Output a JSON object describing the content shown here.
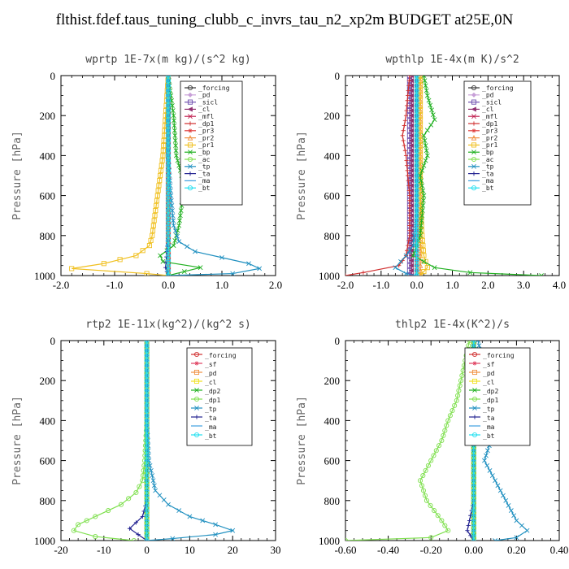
{
  "page_title": "flthist.fdef.taus_tuning_clubb_c_invrs_tau_n2_xp2m  BUDGET at25E,0N",
  "chart_data": [
    {
      "type": "line",
      "title": "wprtp  1E-7x(m kg)/(s^2 kg)",
      "ylabel": "Pressure [hPa]",
      "xlim": [
        -2.0,
        2.0
      ],
      "ylim": [
        1000,
        0
      ],
      "xticks": [
        "-2.0",
        "-1.0",
        "0.0",
        "1.0",
        "2.0"
      ],
      "yticks": [
        "0",
        "200",
        "400",
        "600",
        "800",
        "1000"
      ],
      "legend_position": "top-right",
      "series": [
        {
          "name": "_forcing",
          "color": "#333333",
          "marker": "o",
          "x": [
            0.0,
            0.0
          ],
          "y": [
            0,
            1000
          ]
        },
        {
          "name": "_pd",
          "color": "#c8a0d8",
          "marker": "d",
          "x": [
            0.0,
            0.0
          ],
          "y": [
            0,
            1000
          ]
        },
        {
          "name": "_sicl",
          "color": "#7050b0",
          "marker": "s",
          "x": [
            0.0,
            0.0
          ],
          "y": [
            0,
            1000
          ]
        },
        {
          "name": "_cl",
          "color": "#903070",
          "marker": "<",
          "x": [
            0.0,
            0.0
          ],
          "y": [
            0,
            1000
          ]
        },
        {
          "name": "_mfl",
          "color": "#c02050",
          "marker": "x",
          "x": [
            0.0,
            0.0
          ],
          "y": [
            0,
            1000
          ]
        },
        {
          "name": "_dp1",
          "color": "#d03030",
          "marker": "+",
          "x": [
            0.0,
            0.0
          ],
          "y": [
            0,
            1000
          ]
        },
        {
          "name": "_pr3",
          "color": "#e04040",
          "marker": "*",
          "x": [
            0.0,
            0.0
          ],
          "y": [
            0,
            1000
          ]
        },
        {
          "name": "_pr2",
          "color": "#f09040",
          "marker": "^",
          "x": [
            0.0,
            0.0
          ],
          "y": [
            0,
            1000
          ]
        },
        {
          "name": "_pr1",
          "color": "#f0c020",
          "marker": "s",
          "x": [
            0.0,
            -0.05,
            -0.1,
            -0.15,
            -0.2,
            -0.25,
            -0.3,
            -0.35,
            -0.6,
            -1.2,
            -1.8,
            -0.4,
            0.0
          ],
          "y": [
            0,
            200,
            400,
            500,
            600,
            700,
            800,
            850,
            900,
            940,
            965,
            990,
            1000
          ]
        },
        {
          "name": "_bp",
          "color": "#20b020",
          "marker": "x",
          "x": [
            0.0,
            0.1,
            0.15,
            0.25,
            0.3,
            0.25,
            0.2,
            0.1,
            -0.15,
            -0.1,
            0.6,
            0.0
          ],
          "y": [
            0,
            200,
            400,
            500,
            550,
            650,
            750,
            850,
            900,
            930,
            960,
            1000
          ]
        },
        {
          "name": "_ac",
          "color": "#80e050",
          "marker": "o",
          "x": [
            0.0,
            0.0
          ],
          "y": [
            0,
            1000
          ]
        },
        {
          "name": "_tp",
          "color": "#2090c0",
          "marker": "x",
          "x": [
            0.0,
            0.0,
            0.05,
            0.1,
            0.2,
            0.5,
            1.0,
            1.5,
            1.7,
            1.2,
            0.0
          ],
          "y": [
            0,
            400,
            600,
            750,
            830,
            880,
            910,
            940,
            965,
            990,
            1000
          ]
        },
        {
          "name": "_ta",
          "color": "#202090",
          "marker": "+",
          "x": [
            0.0,
            0.0,
            -0.05,
            0.0
          ],
          "y": [
            0,
            800,
            960,
            1000
          ]
        },
        {
          "name": "_ma",
          "color": "#40a0e0",
          "marker": "-",
          "x": [
            0.0,
            0.0
          ],
          "y": [
            0,
            1000
          ]
        },
        {
          "name": "_bt",
          "color": "#20e0f0",
          "marker": "o",
          "x": [
            0.0,
            0.0
          ],
          "y": [
            0,
            1000
          ]
        }
      ]
    },
    {
      "type": "line",
      "title": "wpthlp  1E-4x(m K)/s^2",
      "ylabel": "Pressure [hPa]",
      "xlim": [
        -2.0,
        4.0
      ],
      "ylim": [
        1000,
        0
      ],
      "xticks": [
        "-2.0",
        "-1.0",
        "0.0",
        "1.0",
        "2.0",
        "3.0",
        "4.0"
      ],
      "yticks": [
        "0",
        "200",
        "400",
        "600",
        "800",
        "1000"
      ],
      "legend_position": "top-right",
      "series": [
        {
          "name": "_forcing",
          "color": "#333333",
          "marker": "o",
          "x": [
            0.0,
            0.0
          ],
          "y": [
            0,
            1000
          ]
        },
        {
          "name": "_pd",
          "color": "#c8a0d8",
          "marker": "d",
          "x": [
            0.0,
            0.0
          ],
          "y": [
            0,
            1000
          ]
        },
        {
          "name": "_sicl",
          "color": "#7050b0",
          "marker": "s",
          "x": [
            -0.2,
            -0.2,
            -0.2,
            -0.2
          ],
          "y": [
            0,
            400,
            800,
            1000
          ]
        },
        {
          "name": "_cl",
          "color": "#903070",
          "marker": "<",
          "x": [
            -0.15,
            -0.15,
            -0.15,
            -0.15
          ],
          "y": [
            0,
            400,
            800,
            1000
          ]
        },
        {
          "name": "_mfl",
          "color": "#c02050",
          "marker": "x",
          "x": [
            0.0,
            0.0
          ],
          "y": [
            0,
            1000
          ]
        },
        {
          "name": "_dp1",
          "color": "#d03030",
          "marker": "+",
          "x": [
            -0.2,
            -0.3,
            -0.4,
            -0.3,
            -0.2,
            -0.2,
            -0.3,
            -0.5,
            -1.5,
            -2.0
          ],
          "y": [
            0,
            200,
            300,
            400,
            600,
            800,
            900,
            950,
            985,
            1000
          ]
        },
        {
          "name": "_pr3",
          "color": "#e04040",
          "marker": "*",
          "x": [
            0.0,
            0.0
          ],
          "y": [
            0,
            1000
          ]
        },
        {
          "name": "_pr2",
          "color": "#f09040",
          "marker": "^",
          "x": [
            0.1,
            0.1
          ],
          "y": [
            0,
            1000
          ]
        },
        {
          "name": "_pr1",
          "color": "#f0c020",
          "marker": "s",
          "x": [
            0.1,
            0.1,
            0.15,
            0.2,
            0.3,
            0.1
          ],
          "y": [
            0,
            600,
            800,
            900,
            960,
            1000
          ]
        },
        {
          "name": "_bp",
          "color": "#20b020",
          "marker": "x",
          "x": [
            0.2,
            0.3,
            0.5,
            0.2,
            0.3,
            0.1,
            0.2,
            0.1,
            -0.1,
            0.5,
            1.5,
            3.5
          ],
          "y": [
            0,
            100,
            220,
            300,
            400,
            500,
            600,
            800,
            900,
            960,
            985,
            1000
          ]
        },
        {
          "name": "_ac",
          "color": "#80e050",
          "marker": "o",
          "x": [
            0.0,
            0.0
          ],
          "y": [
            0,
            1000
          ]
        },
        {
          "name": "_tp",
          "color": "#2090c0",
          "marker": "x",
          "x": [
            0.0,
            0.0,
            -0.1,
            -0.3,
            -0.6,
            -0.3,
            0.0
          ],
          "y": [
            0,
            700,
            850,
            900,
            960,
            990,
            1000
          ]
        },
        {
          "name": "_ta",
          "color": "#202090",
          "marker": "+",
          "x": [
            0.0,
            0.0
          ],
          "y": [
            0,
            1000
          ]
        },
        {
          "name": "_ma",
          "color": "#40a0e0",
          "marker": "-",
          "x": [
            0.0,
            0.0
          ],
          "y": [
            0,
            1000
          ]
        },
        {
          "name": "_bt",
          "color": "#20e0f0",
          "marker": "o",
          "x": [
            0.0,
            0.0
          ],
          "y": [
            0,
            1000
          ]
        }
      ]
    },
    {
      "type": "line",
      "title": "rtp2  1E-11x(kg^2)/(kg^2 s)",
      "ylabel": "Pressure [hPa]",
      "xlim": [
        -20,
        30
      ],
      "ylim": [
        1000,
        0
      ],
      "xticks": [
        "-20",
        "-10",
        "0",
        "10",
        "20",
        "30"
      ],
      "yticks": [
        "0",
        "200",
        "400",
        "600",
        "800",
        "1000"
      ],
      "legend_position": "top-right",
      "series": [
        {
          "name": "_forcing",
          "color": "#d03030",
          "marker": "o",
          "x": [
            0.0,
            0.0
          ],
          "y": [
            0,
            1000
          ]
        },
        {
          "name": "_sf",
          "color": "#e04060",
          "marker": "*",
          "x": [
            0.0,
            0.0
          ],
          "y": [
            0,
            1000
          ]
        },
        {
          "name": "_pd",
          "color": "#f09040",
          "marker": "s",
          "x": [
            0.0,
            0.0
          ],
          "y": [
            0,
            1000
          ]
        },
        {
          "name": "_cl",
          "color": "#f0e020",
          "marker": "s",
          "x": [
            0.0,
            0.0
          ],
          "y": [
            0,
            1000
          ]
        },
        {
          "name": "_dp2",
          "color": "#20b020",
          "marker": "x",
          "x": [
            0.0,
            0.0
          ],
          "y": [
            0,
            1000
          ]
        },
        {
          "name": "_dp1",
          "color": "#80e050",
          "marker": "o",
          "x": [
            0.0,
            0.0,
            -0.5,
            -1.0,
            -2.5,
            -6.0,
            -12.0,
            -16.0,
            -17.0,
            -12.0,
            -3.0
          ],
          "y": [
            0,
            400,
            600,
            700,
            760,
            820,
            880,
            920,
            950,
            980,
            1000
          ]
        },
        {
          "name": "_tp",
          "color": "#2090c0",
          "marker": "x",
          "x": [
            0.0,
            0.0,
            0.5,
            2.0,
            5.0,
            10.0,
            16.0,
            20.0,
            16.0,
            6.0,
            0.0
          ],
          "y": [
            0,
            400,
            600,
            750,
            820,
            880,
            920,
            950,
            970,
            990,
            1000
          ]
        },
        {
          "name": "_ta",
          "color": "#202090",
          "marker": "+",
          "x": [
            0.0,
            0.0,
            -1.0,
            -4.0,
            -2.0,
            0.0
          ],
          "y": [
            0,
            800,
            880,
            940,
            970,
            1000
          ]
        },
        {
          "name": "_ma",
          "color": "#40a0e0",
          "marker": "-",
          "x": [
            0.0,
            0.0
          ],
          "y": [
            0,
            1000
          ]
        },
        {
          "name": "_bt",
          "color": "#20e0f0",
          "marker": "o",
          "x": [
            0.0,
            0.0
          ],
          "y": [
            0,
            1000
          ]
        }
      ]
    },
    {
      "type": "line",
      "title": "thlp2  1E-4x(K^2)/s",
      "ylabel": "Pressure [hPa]",
      "xlim": [
        -0.6,
        0.4
      ],
      "ylim": [
        1000,
        0
      ],
      "xticks": [
        "-0.60",
        "-0.40",
        "-0.20",
        "0.00",
        "0.20",
        "0.40"
      ],
      "yticks": [
        "0",
        "200",
        "400",
        "600",
        "800",
        "1000"
      ],
      "legend_position": "top-right",
      "series": [
        {
          "name": "_forcing",
          "color": "#d03030",
          "marker": "o",
          "x": [
            0.0,
            0.0
          ],
          "y": [
            0,
            1000
          ]
        },
        {
          "name": "_sf",
          "color": "#e04060",
          "marker": "*",
          "x": [
            0.0,
            0.0
          ],
          "y": [
            0,
            1000
          ]
        },
        {
          "name": "_pd",
          "color": "#f09040",
          "marker": "s",
          "x": [
            0.0,
            0.0
          ],
          "y": [
            0,
            1000
          ]
        },
        {
          "name": "_cl",
          "color": "#f0e020",
          "marker": "s",
          "x": [
            0.0,
            0.0
          ],
          "y": [
            0,
            1000
          ]
        },
        {
          "name": "_dp2",
          "color": "#20b020",
          "marker": "x",
          "x": [
            0.0,
            0.0
          ],
          "y": [
            0,
            1000
          ]
        },
        {
          "name": "_dp1",
          "color": "#80e050",
          "marker": "o",
          "x": [
            -0.02,
            -0.05,
            -0.08,
            -0.12,
            -0.15,
            -0.2,
            -0.25,
            -0.22,
            -0.15,
            -0.12,
            -0.2,
            -0.6
          ],
          "y": [
            0,
            150,
            300,
            400,
            500,
            600,
            700,
            800,
            900,
            950,
            985,
            1000
          ]
        },
        {
          "name": "_tp",
          "color": "#2090c0",
          "marker": "x",
          "x": [
            0.02,
            0.05,
            0.08,
            0.1,
            0.08,
            0.05,
            0.1,
            0.15,
            0.2,
            0.25,
            0.2,
            0.1
          ],
          "y": [
            0,
            150,
            300,
            400,
            500,
            600,
            700,
            800,
            900,
            950,
            985,
            1000
          ]
        },
        {
          "name": "_ta",
          "color": "#202090",
          "marker": "+",
          "x": [
            0.0,
            0.0,
            -0.02,
            -0.03,
            0.0
          ],
          "y": [
            0,
            800,
            900,
            950,
            1000
          ]
        },
        {
          "name": "_ma",
          "color": "#40a0e0",
          "marker": "-",
          "x": [
            0.0,
            0.0
          ],
          "y": [
            0,
            1000
          ]
        },
        {
          "name": "_bt",
          "color": "#20e0f0",
          "marker": "o",
          "x": [
            0.0,
            0.0
          ],
          "y": [
            0,
            1000
          ]
        }
      ]
    }
  ]
}
